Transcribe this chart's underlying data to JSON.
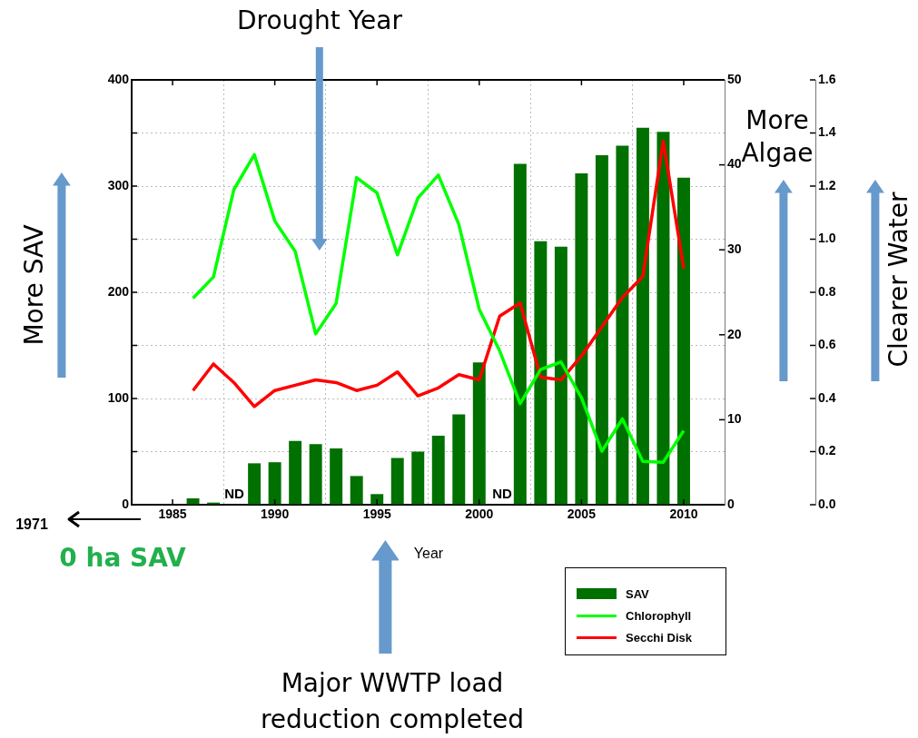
{
  "chart_data": {
    "type": "bar",
    "xlabel": "Year",
    "ylabel": "More SAV",
    "y2label": "More Algae",
    "y3label": "Clearer Water",
    "x": [
      1986,
      1987,
      1988,
      1989,
      1990,
      1991,
      1992,
      1993,
      1994,
      1995,
      1996,
      1997,
      1998,
      1999,
      2000,
      2001,
      2002,
      2003,
      2004,
      2005,
      2006,
      2007,
      2008,
      2009,
      2010
    ],
    "series": [
      {
        "name": "SAV",
        "color": "#007000",
        "values": [
          6,
          2,
          null,
          39,
          40,
          60,
          57,
          53,
          27,
          10,
          44,
          50,
          65,
          85,
          134,
          null,
          321,
          248,
          243,
          312,
          329,
          338,
          355,
          351,
          308
        ]
      },
      {
        "name": "Chlorophyll",
        "type": "line",
        "axis": "y2",
        "color": "#00ff00",
        "values": [
          24.3,
          26.8,
          37.1,
          41.2,
          33.4,
          29.8,
          20.1,
          23.7,
          38.5,
          36.7,
          29.4,
          36.1,
          38.8,
          33.0,
          23.0,
          18.1,
          11.9,
          15.9,
          16.8,
          12.6,
          6.3,
          10.1,
          5.1,
          5.0,
          8.7
        ]
      },
      {
        "name": "Secchi Disk",
        "type": "line",
        "axis": "y3",
        "color": "#ff0000",
        "values": [
          0.43,
          0.53,
          0.46,
          0.37,
          0.43,
          0.45,
          0.47,
          0.46,
          0.43,
          0.45,
          0.5,
          0.41,
          0.44,
          0.49,
          0.47,
          0.71,
          0.76,
          0.48,
          0.47,
          0.56,
          0.67,
          0.78,
          0.86,
          1.37,
          0.89
        ]
      }
    ],
    "xlim": [
      1983,
      2012
    ],
    "xticks": [
      1985,
      1990,
      1995,
      2000,
      2005,
      2010
    ],
    "ylim": [
      0,
      400
    ],
    "yticks": [
      0,
      {
        "value": 50,
        "label": null
      },
      100,
      {
        "value": 150,
        "label": null
      },
      200,
      {
        "value": 250,
        "label": null
      },
      300,
      {
        "value": 350,
        "label": null
      },
      400
    ],
    "y2lim": [
      0,
      50
    ],
    "y2ticks": [
      0,
      10,
      20,
      30,
      40,
      50
    ],
    "y3lim": [
      0,
      1.6
    ],
    "y3ticks": [
      {
        "value": 0,
        "label": "0.0"
      },
      0.2,
      0.4,
      0.6,
      0.8,
      {
        "value": 1,
        "label": "1.0"
      },
      1.2,
      1.4,
      1.6
    ],
    "grid": true,
    "legend": "bottom right",
    "line_style": "solid",
    "marker": "none",
    "annotations": [
      "Drought Year",
      "1971",
      "0 ha SAV",
      "Major WWTP load reduction completed",
      "ND",
      "ND"
    ]
  }
}
